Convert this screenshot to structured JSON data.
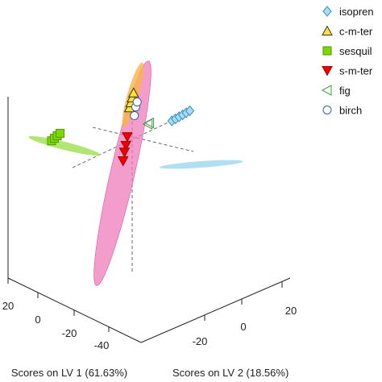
{
  "chart_data": {
    "type": "scatter",
    "projection": "3d",
    "title": "",
    "axes": {
      "lv1": {
        "label": "Scores on LV 1 (61.63%)",
        "ticks": [
          "-40",
          "-20",
          "0",
          "20"
        ]
      },
      "lv2": {
        "label": "Scores on LV 2 (18.56%)",
        "ticks": [
          "-20",
          "0",
          "20"
        ]
      },
      "lv3": {
        "label": "",
        "ticks": []
      }
    },
    "legend": {
      "placement": "top-right",
      "entries": [
        {
          "label": "isopren",
          "marker": "diamond",
          "color": "#a8dcf0",
          "edge": "#3a8fc7"
        },
        {
          "label": "c-m-ter",
          "marker": "triangle-up",
          "color": "#ffe233",
          "edge": "#333333"
        },
        {
          "label": "sesquil",
          "marker": "square",
          "color": "#7fd600",
          "edge": "#4a9c00"
        },
        {
          "label": "s-m-ter",
          "marker": "triangle-down",
          "color": "#ee0000",
          "edge": "#aa0000"
        },
        {
          "label": "fig",
          "marker": "triangle-left",
          "color": "none",
          "edge": "#4a9c4a"
        },
        {
          "label": "birch",
          "marker": "circle",
          "color": "#ffffff",
          "edge": "#3a5fa0"
        }
      ]
    },
    "grid": false,
    "series": [
      {
        "name": "isopren",
        "lv1": [
          5,
          6,
          7,
          8,
          9,
          10
        ],
        "lv2": [
          20,
          22,
          24,
          26,
          28,
          30
        ],
        "lv3": [
          0,
          0,
          0,
          0,
          0,
          0
        ]
      },
      {
        "name": "c-m-ter",
        "lv1": [
          -2,
          -1,
          0,
          1
        ],
        "lv2": [
          -2,
          -1,
          0,
          1
        ],
        "lv3": [
          18,
          20,
          22,
          24
        ]
      },
      {
        "name": "sesquil",
        "lv1": [
          20,
          22,
          24,
          26
        ],
        "lv2": [
          -30,
          -28,
          -26,
          -24
        ],
        "lv3": [
          6,
          6,
          6,
          6
        ]
      },
      {
        "name": "s-m-ter",
        "lv1": [
          -5,
          -6,
          -7,
          -8
        ],
        "lv2": [
          -4,
          -5,
          -6,
          -7
        ],
        "lv3": [
          4,
          0,
          -3,
          -7
        ]
      },
      {
        "name": "fig",
        "lv1": [
          2,
          3
        ],
        "lv2": [
          8,
          9
        ],
        "lv3": [
          4,
          4
        ]
      },
      {
        "name": "birch",
        "lv1": [
          0,
          1,
          2
        ],
        "lv2": [
          1,
          2,
          3
        ],
        "lv3": [
          12,
          16,
          18
        ]
      }
    ]
  }
}
